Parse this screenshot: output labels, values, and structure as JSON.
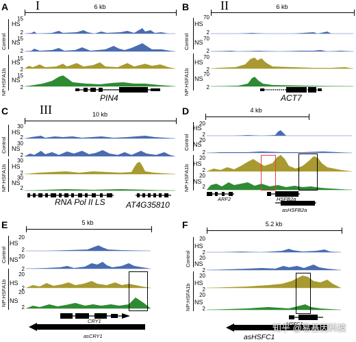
{
  "colors": {
    "blue": "#4a6cb0",
    "olive": "#a89a30",
    "green": "#2f8a34",
    "red_box": "#e04040",
    "black_box": "#000000"
  },
  "panels": [
    {
      "letter": "A",
      "roman": "I",
      "scale": "6 kb",
      "group_top": "Control",
      "group_bottom": "NP:HSFA1b",
      "labels": [
        "HS",
        "NS",
        "HS",
        "NS"
      ],
      "ymax": [
        "15",
        "15",
        "15",
        "15"
      ],
      "ymin": [
        "2",
        "2",
        "2",
        "2"
      ],
      "genes": [
        "PIN4"
      ]
    },
    {
      "letter": "B",
      "roman": "II",
      "scale": "6 kb",
      "group_top": "Control",
      "group_bottom": "NP:HSFA1b",
      "labels": [
        "HS",
        "NS",
        "HS",
        "NS"
      ],
      "ymax": [
        "70",
        "70",
        "70",
        "70"
      ],
      "ymin": [
        "2",
        "2",
        "2",
        "2"
      ],
      "genes": [
        "ACT7"
      ]
    },
    {
      "letter": "C",
      "roman": "III",
      "scale": "10 kb",
      "group_top": "Control",
      "group_bottom": "NP:HSFA1b",
      "labels": [
        "HS",
        "NS",
        "HS",
        "NS"
      ],
      "ymax": [
        "30",
        "30",
        "30",
        "30"
      ],
      "ymin": [
        "2",
        "2",
        "2",
        "2"
      ],
      "genes": [
        "RNA Pol II LS",
        "AT4G35810"
      ]
    },
    {
      "letter": "D",
      "roman": "",
      "scale": "4 kb",
      "group_top": "Control",
      "group_bottom": "NP:HSFA1b",
      "labels": [
        "HS",
        "NS",
        "HS",
        "NS"
      ],
      "ymax": [
        "20",
        "20",
        "20",
        "20"
      ],
      "ymin": [
        "2",
        "2",
        "2",
        "2"
      ],
      "genes": [
        "ARF2",
        "HSFB2a",
        "asHSFB2a"
      ]
    },
    {
      "letter": "E",
      "roman": "",
      "scale": "5 kb",
      "group_top": "Control",
      "group_bottom": "NP:HSFA1b",
      "labels": [
        "HS",
        "NS",
        "HS",
        "NS"
      ],
      "ymax": [
        "20",
        "20",
        "20",
        "20"
      ],
      "ymin": [
        "2",
        "2",
        "2",
        "2"
      ],
      "genes": [
        "CRY1",
        "asCRY1"
      ]
    },
    {
      "letter": "F",
      "roman": "",
      "scale": "5.2 kb",
      "group_top": "Control",
      "group_bottom": "NP:HSFA1b",
      "labels": [
        "HS",
        "NS",
        "HS",
        "NS"
      ],
      "ymax": [
        "20",
        "20",
        "20",
        "20"
      ],
      "ymin": [
        "2",
        "2",
        "2",
        "2"
      ],
      "genes": [
        "HSFC1",
        "asHSFC1"
      ]
    }
  ],
  "watermark": "知乎 @易基因科技"
}
